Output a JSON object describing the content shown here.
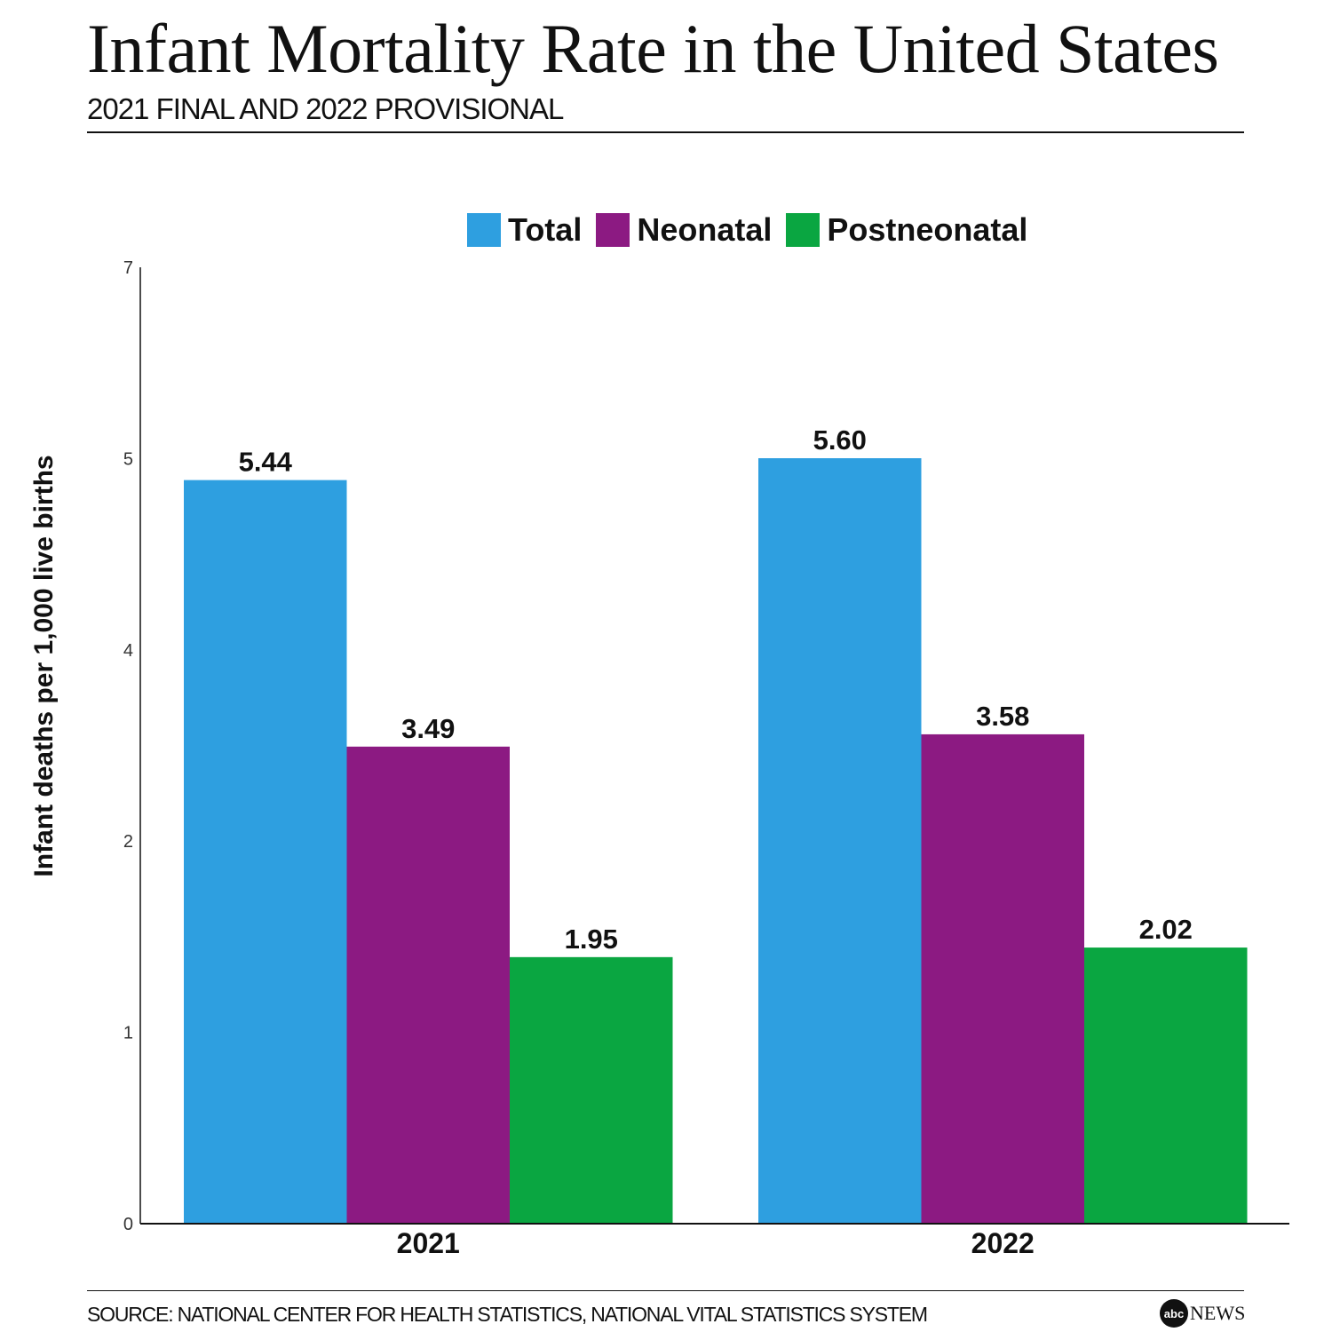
{
  "title": "Infant Mortality Rate in the United States",
  "subtitle": "2021 FINAL AND 2022 PROVISIONAL",
  "source": "SOURCE: NATIONAL CENTER FOR HEALTH STATISTICS, NATIONAL VITAL STATISTICS SYSTEM",
  "logo": {
    "mark": "abc",
    "text": "NEWS"
  },
  "chart_data": {
    "type": "bar",
    "title": "Infant Mortality Rate in the United States",
    "ylabel": "Infant deaths per 1,000 live births",
    "xlabel": "",
    "categories": [
      "2021",
      "2022"
    ],
    "y_tick_labels": [
      "0",
      "1",
      "2",
      "4",
      "5",
      "7"
    ],
    "grid": false,
    "legend": "top-center",
    "series": [
      {
        "name": "Total",
        "color": "#2e9fe0",
        "values": [
          5.44,
          5.6
        ],
        "labels": [
          "5.44",
          "5.60"
        ]
      },
      {
        "name": "Neonatal",
        "color": "#8c1a82",
        "values": [
          3.49,
          3.58
        ],
        "labels": [
          "3.49",
          "3.58"
        ]
      },
      {
        "name": "Postneonatal",
        "color": "#0aa641",
        "values": [
          1.95,
          2.02
        ],
        "labels": [
          "1.95",
          "2.02"
        ]
      }
    ]
  }
}
